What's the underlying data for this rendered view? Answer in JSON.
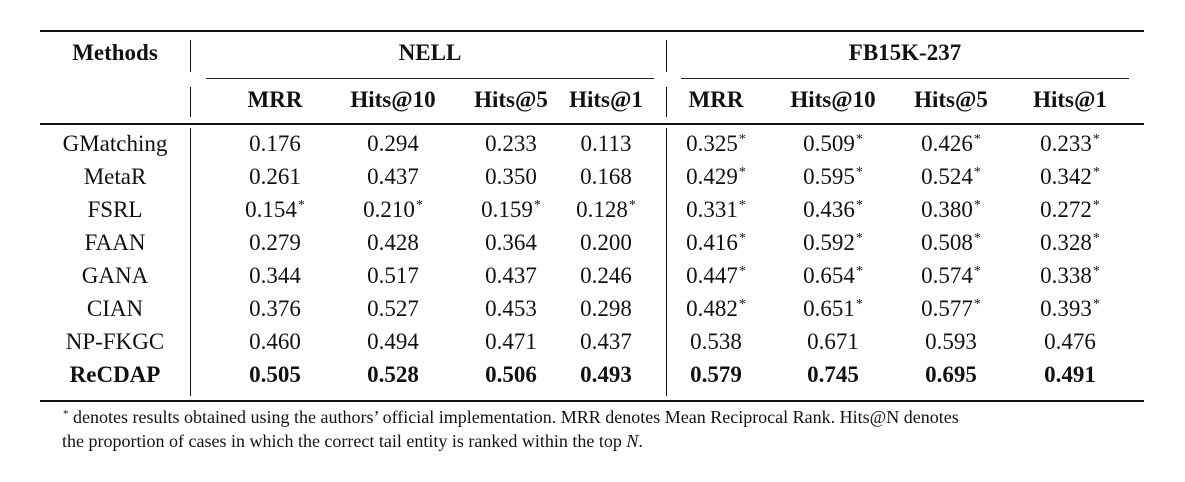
{
  "table": {
    "header": {
      "methods": "Methods",
      "group1": "NELL",
      "group2": "FB15K-237",
      "metrics": [
        "MRR",
        "Hits@10",
        "Hits@5",
        "Hits@1",
        "MRR",
        "Hits@10",
        "Hits@5",
        "Hits@1"
      ]
    },
    "rows": [
      {
        "method": "GMatching",
        "bold": false,
        "values": [
          "0.176",
          "0.294",
          "0.233",
          "0.113",
          "0.325",
          "0.509",
          "0.426",
          "0.233"
        ],
        "star": [
          false,
          false,
          false,
          false,
          true,
          true,
          true,
          true
        ]
      },
      {
        "method": "MetaR",
        "bold": false,
        "values": [
          "0.261",
          "0.437",
          "0.350",
          "0.168",
          "0.429",
          "0.595",
          "0.524",
          "0.342"
        ],
        "star": [
          false,
          false,
          false,
          false,
          true,
          true,
          true,
          true
        ]
      },
      {
        "method": "FSRL",
        "bold": false,
        "values": [
          "0.154",
          "0.210",
          "0.159",
          "0.128",
          "0.331",
          "0.436",
          "0.380",
          "0.272"
        ],
        "star": [
          true,
          true,
          true,
          true,
          true,
          true,
          true,
          true
        ]
      },
      {
        "method": "FAAN",
        "bold": false,
        "values": [
          "0.279",
          "0.428",
          "0.364",
          "0.200",
          "0.416",
          "0.592",
          "0.508",
          "0.328"
        ],
        "star": [
          false,
          false,
          false,
          false,
          true,
          true,
          true,
          true
        ]
      },
      {
        "method": "GANA",
        "bold": false,
        "values": [
          "0.344",
          "0.517",
          "0.437",
          "0.246",
          "0.447",
          "0.654",
          "0.574",
          "0.338"
        ],
        "star": [
          false,
          false,
          false,
          false,
          true,
          true,
          true,
          true
        ]
      },
      {
        "method": "CIAN",
        "bold": false,
        "values": [
          "0.376",
          "0.527",
          "0.453",
          "0.298",
          "0.482",
          "0.651",
          "0.577",
          "0.393"
        ],
        "star": [
          false,
          false,
          false,
          false,
          true,
          true,
          true,
          true
        ]
      },
      {
        "method": "NP-FKGC",
        "bold": false,
        "values": [
          "0.460",
          "0.494",
          "0.471",
          "0.437",
          "0.538",
          "0.671",
          "0.593",
          "0.476"
        ],
        "star": [
          false,
          false,
          false,
          false,
          false,
          false,
          false,
          false
        ]
      },
      {
        "method": "ReCDAP",
        "bold": true,
        "values": [
          "0.505",
          "0.528",
          "0.506",
          "0.493",
          "0.579",
          "0.745",
          "0.695",
          "0.491"
        ],
        "star": [
          false,
          false,
          false,
          false,
          false,
          false,
          false,
          false
        ]
      }
    ],
    "star_symbol": "*"
  },
  "footnote": {
    "star": "*",
    "line1": " denotes results obtained using the authors’ official implementation. MRR denotes Mean Reciprocal Rank. Hits@N denotes",
    "line2_pre": "the proportion of cases in which the correct tail entity is ranked within the top ",
    "line2_var": "N",
    "line2_post": "."
  }
}
